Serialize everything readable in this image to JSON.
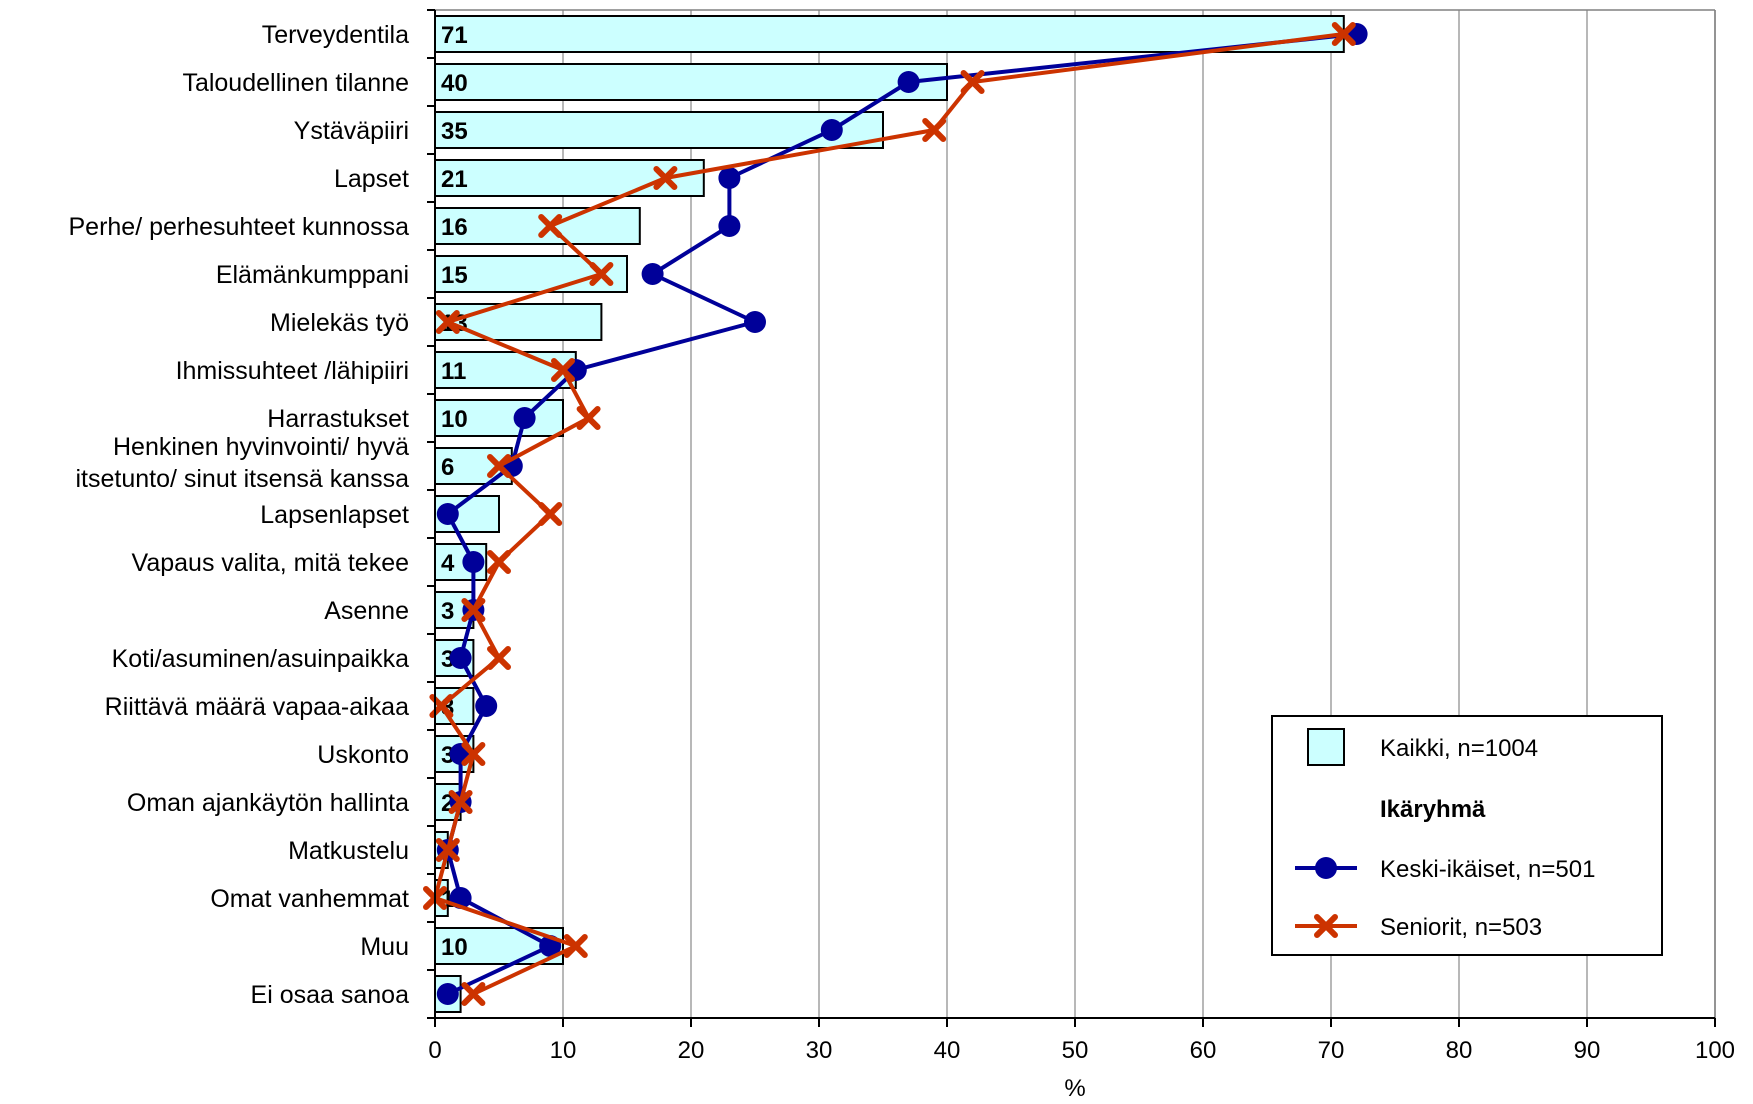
{
  "chart_data": {
    "type": "bar",
    "orientation": "horizontal",
    "xlabel": "%",
    "xlim": [
      0,
      100
    ],
    "xticks": [
      "0",
      "10",
      "20",
      "30",
      "40",
      "50",
      "60",
      "70",
      "80",
      "90",
      "100"
    ],
    "grid": "vertical",
    "legend_placement": "bottom-right",
    "categories": [
      "Terveydentila",
      "Taloudellinen tilanne",
      "Ystäväpiiri",
      "Lapset",
      "Perhe/ perhesuhteet kunnossa",
      "Elämänkumppani",
      "Mielekäs työ",
      "Ihmissuhteet /lähipiiri",
      "Harrastukset",
      "Henkinen hyvinvointi/ hyvä itsetunto/ sinut itsensä kanssa",
      "Lapsenlapset",
      "Vapaus valita, mitä tekee",
      "Asenne",
      "Koti/asuminen/asuinpaikka",
      "Riittävä määrä vapaa-aikaa",
      "Uskonto",
      "Oman ajankäytön hallinta",
      "Matkustelu",
      "Omat vanhemmat",
      "Muu",
      "Ei osaa sanoa"
    ],
    "category_label_lines": [
      [
        "Terveydentila"
      ],
      [
        "Taloudellinen tilanne"
      ],
      [
        "Ystäväpiiri"
      ],
      [
        "Lapset"
      ],
      [
        "Perhe/ perhesuhteet kunnossa"
      ],
      [
        "Elämänkumppani"
      ],
      [
        "Mielekäs työ"
      ],
      [
        "Ihmissuhteet /lähipiiri"
      ],
      [
        "Harrastukset"
      ],
      [
        "Henkinen hyvinvointi/ hyvä",
        "itsetunto/ sinut itsensä kanssa"
      ],
      [
        "Lapsenlapset"
      ],
      [
        "Vapaus valita, mitä tekee"
      ],
      [
        "Asenne"
      ],
      [
        "Koti/asuminen/asuinpaikka"
      ],
      [
        "Riittävä määrä vapaa-aikaa"
      ],
      [
        "Uskonto"
      ],
      [
        "Oman ajankäytön hallinta"
      ],
      [
        "Matkustelu"
      ],
      [
        "Omat vanhemmat"
      ],
      [
        "Muu"
      ],
      [
        "Ei osaa sanoa"
      ]
    ],
    "data_labels": [
      "71",
      "40",
      "35",
      "21",
      "16",
      "15",
      "13",
      "11",
      "10",
      "6",
      "5",
      "4",
      "3",
      "3",
      "3",
      "3",
      "2",
      "1",
      "1",
      "10",
      "2"
    ],
    "series": [
      {
        "name": "Kaikki, n=1004",
        "kind": "bar",
        "color": "#ccffff",
        "values": [
          71,
          40,
          35,
          21,
          16,
          15,
          13,
          11,
          10,
          6,
          5,
          4,
          3,
          3,
          3,
          3,
          2,
          1,
          1,
          10,
          2
        ]
      },
      {
        "name": "Keski-ikäiset, n=501",
        "kind": "line",
        "marker": "circle",
        "color": "#000099",
        "values": [
          72,
          37,
          31,
          23,
          23,
          17,
          25,
          11,
          7,
          6,
          1,
          3,
          3,
          2,
          4,
          2,
          2,
          1,
          2,
          9,
          1
        ]
      },
      {
        "name": "Seniorit, n=503",
        "kind": "line",
        "marker": "x",
        "color": "#cc3300",
        "values": [
          71,
          42,
          39,
          18,
          9,
          13,
          1,
          10,
          12,
          5,
          9,
          5,
          3,
          5,
          0.5,
          3,
          2,
          1,
          0,
          11,
          3
        ]
      }
    ],
    "legend": {
      "all_label": "Kaikki, n=1004",
      "group_title": "Ikäryhmä",
      "middle_label": "Keski-ikäiset, n=501",
      "senior_label": "Seniorit, n=503"
    }
  }
}
